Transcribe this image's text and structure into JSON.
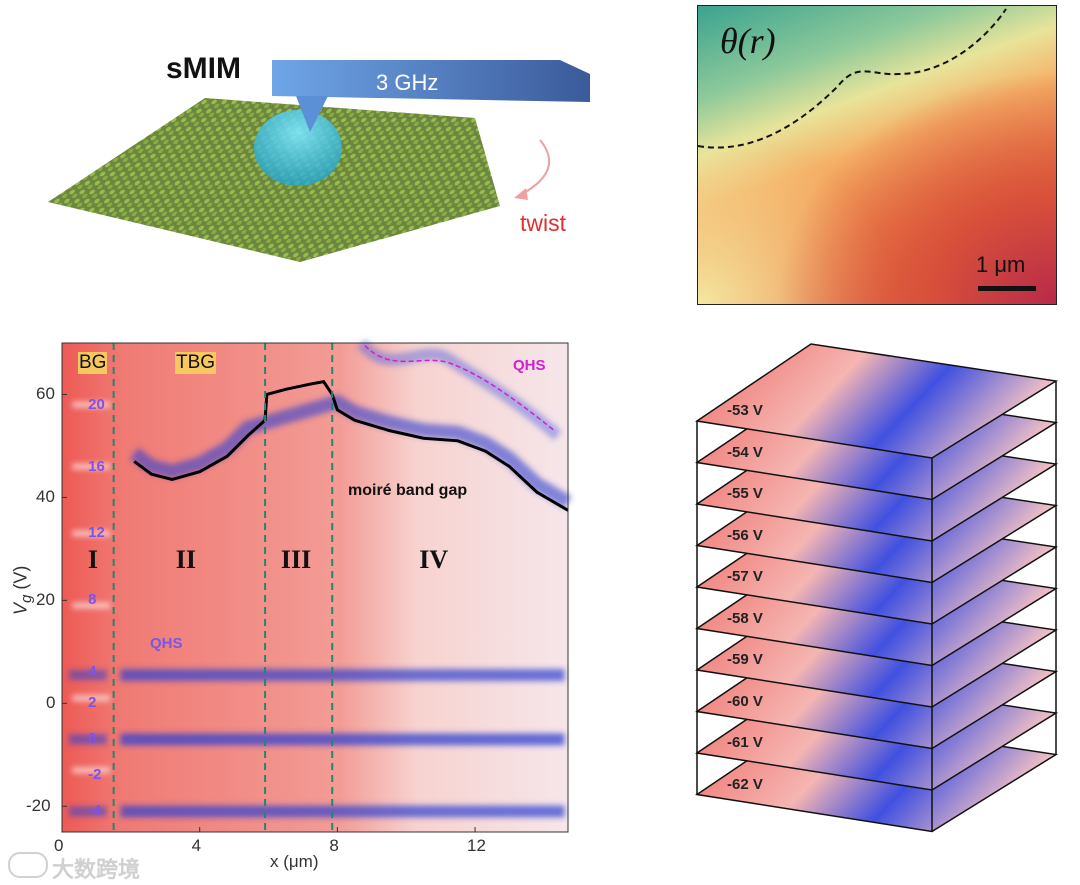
{
  "panel_a": {
    "technique": "sMIM",
    "frequency": "3 GHz",
    "twist_label": "twist"
  },
  "panel_b": {
    "title": "θ(r)",
    "scale_bar": "1 μm"
  },
  "panel_c": {
    "xlabel": "x (μm)",
    "ylabel": "V",
    "ylabel_sub": "g",
    "ylabel_unit": " (V)",
    "x_ticks": [
      "0",
      "4",
      "8",
      "12"
    ],
    "y_ticks": [
      "60",
      "40",
      "20",
      "0",
      "-20"
    ],
    "xlim": [
      0,
      14.7
    ],
    "ylim": [
      -25,
      70
    ],
    "region_labels": [
      "I",
      "II",
      "III",
      "IV"
    ],
    "material_labels": [
      "BG",
      "TBG"
    ],
    "filling_labels": [
      "20",
      "16",
      "12",
      "8",
      "4",
      "2",
      "0",
      "-2",
      "-4"
    ],
    "qhs_label": "QHS",
    "qhs_top_label": "QHS",
    "gap_label": "moiré band gap",
    "boundaries_um": [
      1.5,
      5.9,
      7.85
    ],
    "gap_curve": [
      [
        2.1,
        47
      ],
      [
        2.6,
        44.5
      ],
      [
        3.2,
        43.5
      ],
      [
        4,
        45
      ],
      [
        4.8,
        48
      ],
      [
        5.4,
        52
      ],
      [
        5.9,
        55
      ],
      [
        5.95,
        60
      ],
      [
        6.5,
        61
      ],
      [
        7.2,
        62
      ],
      [
        7.6,
        62.5
      ],
      [
        7.85,
        60
      ],
      [
        8,
        57
      ],
      [
        8.5,
        55
      ],
      [
        9.5,
        53
      ],
      [
        10.5,
        51.5
      ],
      [
        11.5,
        51
      ],
      [
        12.3,
        49
      ],
      [
        13,
        46
      ],
      [
        13.8,
        41
      ],
      [
        14.7,
        37.5
      ]
    ]
  },
  "panel_d": {
    "layers": [
      "-53 V",
      "-54 V",
      "-55 V",
      "-56 V",
      "-57 V",
      "-58 V",
      "-59 V",
      "-60 V",
      "-61 V",
      "-62 V"
    ]
  },
  "watermark": "大数跨境",
  "colors": {
    "red": "#e8453c",
    "blue": "#3344dd",
    "qhs": "#7a55e8",
    "magenta": "#d020d0",
    "dash": "#1b8a6e"
  }
}
